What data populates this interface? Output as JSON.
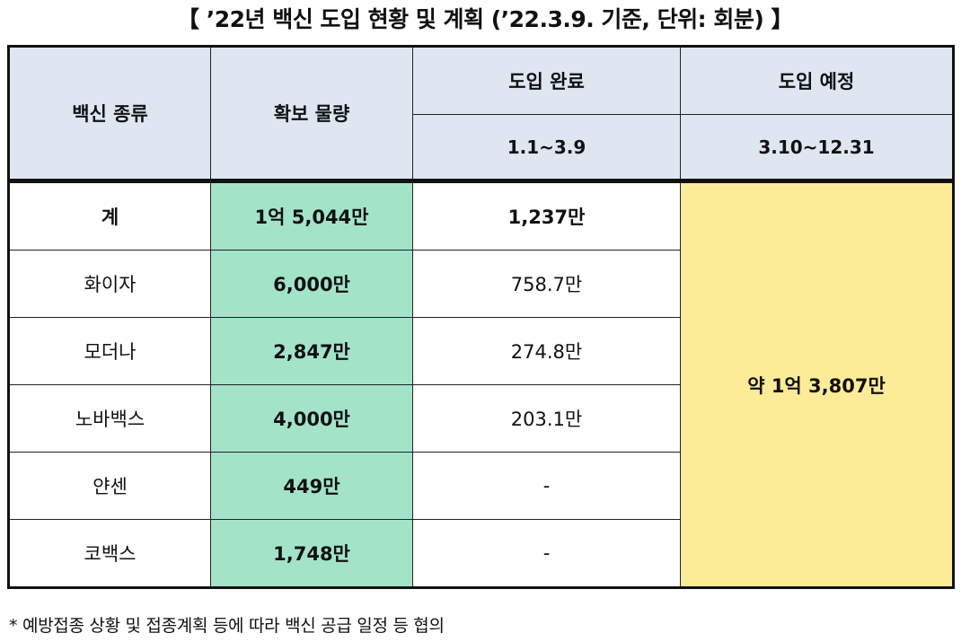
{
  "title": "【 ’22년 백신 도입 현황 및 계획 (’22.3.9. 기준, 단위: 회분) 】",
  "headers": {
    "vaccine_type": "백신 종류",
    "secured_amount": "확보 물량",
    "introduced": "도입 완료",
    "introduced_period": "1.1~3.9",
    "planned": "도입 예정",
    "planned_period": "3.10~12.31"
  },
  "rows": [
    {
      "name": "계",
      "secured": "1억 5,044만",
      "introduced": "1,237만"
    },
    {
      "name": "화이자",
      "secured": "6,000만",
      "introduced": "758.7만"
    },
    {
      "name": "모더나",
      "secured": "2,847만",
      "introduced": "274.8만"
    },
    {
      "name": "노바백스",
      "secured": "4,000만",
      "introduced": "203.1만"
    },
    {
      "name": "얀센",
      "secured": "449만",
      "introduced": "-"
    },
    {
      "name": "코백스",
      "secured": "1,748만",
      "introduced": "-"
    }
  ],
  "planned_total": "약 1억 3,807만",
  "footnote": "* 예방접종 상황 및 접종계획 등에 따라 백신 공급 일정 등 협의",
  "colors": {
    "header_bg": "#dde6f1",
    "secured_bg": "#a3e4c8",
    "planned_bg": "#fdec97"
  }
}
